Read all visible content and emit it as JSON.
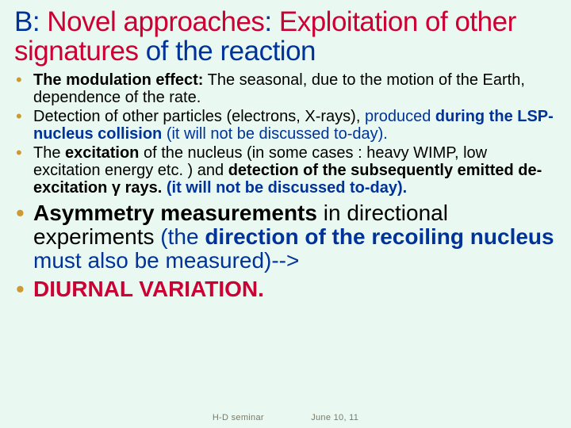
{
  "title": {
    "parts": [
      {
        "text": "B: ",
        "cls": "blue"
      },
      {
        "text": "Novel approaches",
        "cls": "red"
      },
      {
        "text": ": ",
        "cls": "blue"
      },
      {
        "text": "Exploitation of other signatures",
        "cls": "red"
      },
      {
        "text": " of the reaction",
        "cls": "blue"
      }
    ]
  },
  "bullets": [
    {
      "size": "small",
      "runs": [
        {
          "text": "The modulation effect:",
          "cls": "blk-b"
        },
        {
          "text": " The  seasonal, due to the motion of the Earth, dependence of the rate.",
          "cls": "blk"
        }
      ]
    },
    {
      "size": "small",
      "runs": [
        {
          "text": " Detection of other particles (electrons, X-rays), ",
          "cls": "blk"
        },
        {
          "text": "produced ",
          "cls": "blue"
        },
        {
          "text": "during the LSP-nucleus collision ",
          "cls": "blue-b"
        },
        {
          "text": "(it will not be discussed to-day).",
          "cls": "blue"
        }
      ]
    },
    {
      "size": "small",
      "runs": [
        {
          "text": "The ",
          "cls": "blk"
        },
        {
          "text": "excitation ",
          "cls": "blk-b"
        },
        {
          "text": "of the nucleus (in some cases : heavy WIMP, low excitation energy etc. )  and ",
          "cls": "blk"
        },
        {
          "text": "detection of the subsequently emitted de-excitation γ rays. ",
          "cls": "blk-b"
        },
        {
          "text": "(it will not be discussed to-day).",
          "cls": "blue-b"
        }
      ]
    },
    {
      "size": "big",
      "runs": [
        {
          "text": "Asymmetry measurements",
          "cls": "blk-b"
        },
        {
          "text": " in directional experiments ",
          "cls": "blk"
        },
        {
          "text": "(the ",
          "cls": "blue"
        },
        {
          "text": "direction of the recoiling nucleus ",
          "cls": "blue-b"
        },
        {
          "text": "must also be measured)-->",
          "cls": "blue"
        }
      ]
    },
    {
      "size": "big",
      "runs": [
        {
          "text": "DIURNAL VARIATION.",
          "cls": "red-b"
        }
      ]
    }
  ],
  "footer": {
    "left": "H-D seminar",
    "right": "June 10, 11"
  }
}
